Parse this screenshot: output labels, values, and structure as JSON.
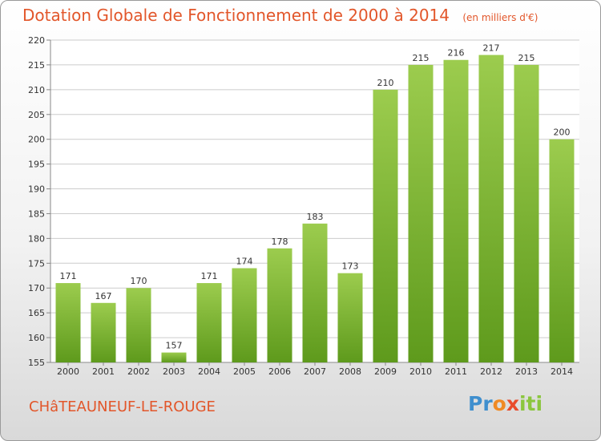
{
  "header": {
    "title": "Dotation Globale de Fonctionnement de 2000 à 2014",
    "subtitle": "(en milliers d'€)"
  },
  "footer": {
    "location": "CHâTEAUNEUF-LE-ROUGE",
    "logo_parts": [
      "Pr",
      "o",
      "x",
      "iti"
    ]
  },
  "colors": {
    "accent": "#e2562a",
    "bar_top": "#9ccc4e",
    "bar_bottom": "#5e9a1c",
    "grid": "#cccccc",
    "axis_text": "#333333"
  },
  "chart_data": {
    "type": "bar",
    "title": "Dotation Globale de Fonctionnement de 2000 à 2014",
    "subtitle": "(en milliers d'€)",
    "xlabel": "",
    "ylabel": "",
    "categories": [
      "2000",
      "2001",
      "2002",
      "2003",
      "2004",
      "2005",
      "2006",
      "2007",
      "2008",
      "2009",
      "2010",
      "2011",
      "2012",
      "2013",
      "2014"
    ],
    "values": [
      171,
      167,
      170,
      157,
      171,
      174,
      178,
      183,
      173,
      210,
      215,
      216,
      217,
      215,
      200
    ],
    "ylim": [
      155,
      220
    ],
    "yticks": [
      155,
      160,
      165,
      170,
      175,
      180,
      185,
      190,
      195,
      200,
      205,
      210,
      215,
      220
    ],
    "grid": true,
    "data_labels": true
  }
}
